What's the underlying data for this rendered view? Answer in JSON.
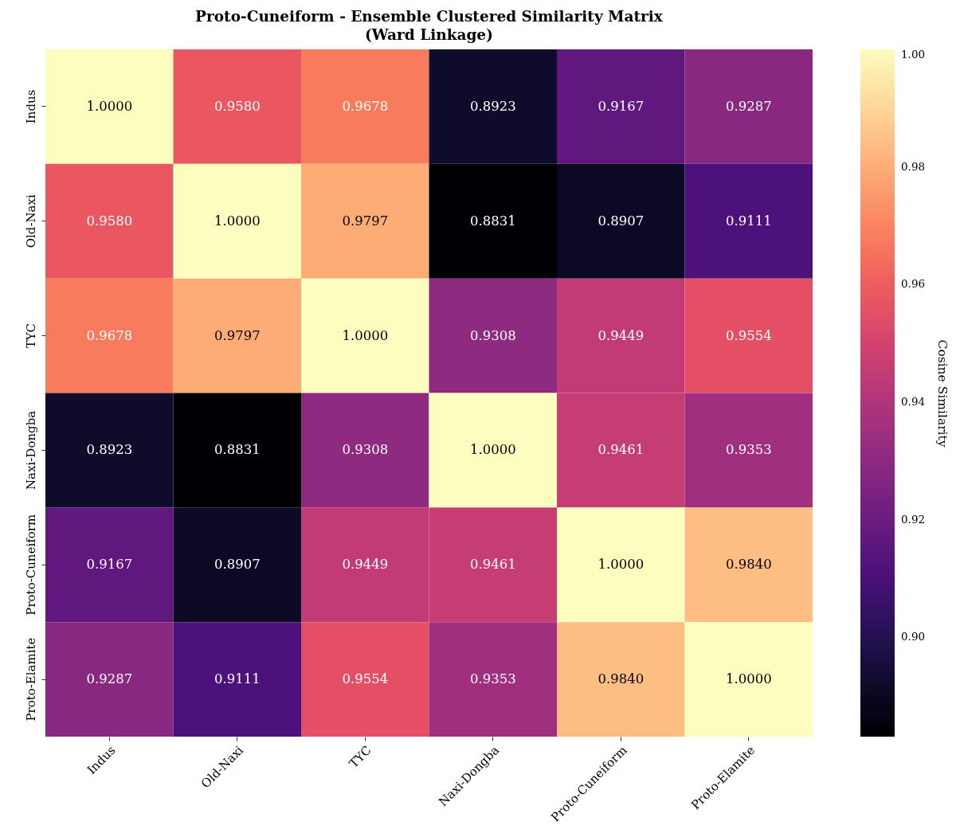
{
  "chart_data": {
    "type": "heatmap",
    "title": "Proto-Cuneiform - Ensemble Clustered Similarity Matrix\n(Ward Linkage)",
    "categories": [
      "Indus",
      "Old-Naxi",
      "TYC",
      "Naxi-Dongba",
      "Proto-Cuneiform",
      "Proto-Elamite"
    ],
    "y_categories": [
      "Indus",
      "Old-Naxi",
      "TYC",
      "Naxi-Dongba",
      "Proto-Cuneiform",
      "Proto-Elamite"
    ],
    "cells": [
      [
        1.0,
        0.958,
        0.9678,
        0.8923,
        0.9167,
        0.9287
      ],
      [
        0.958,
        1.0,
        0.9797,
        0.8831,
        0.8907,
        0.9111
      ],
      [
        0.9678,
        0.9797,
        1.0,
        0.9308,
        0.9449,
        0.9554
      ],
      [
        0.8923,
        0.8831,
        0.9308,
        1.0,
        0.9461,
        0.9353
      ],
      [
        0.9167,
        0.8907,
        0.9449,
        0.9461,
        1.0,
        0.984
      ],
      [
        0.9287,
        0.9111,
        0.9554,
        0.9353,
        0.984,
        1.0
      ]
    ],
    "cell_labels": [
      [
        "1.0000",
        "0.9580",
        "0.9678",
        "0.8923",
        "0.9167",
        "0.9287"
      ],
      [
        "0.9580",
        "1.0000",
        "0.9797",
        "0.8831",
        "0.8907",
        "0.9111"
      ],
      [
        "0.9678",
        "0.9797",
        "1.0000",
        "0.9308",
        "0.9449",
        "0.9554"
      ],
      [
        "0.8923",
        "0.8831",
        "0.9308",
        "1.0000",
        "0.9461",
        "0.9353"
      ],
      [
        "0.9167",
        "0.8907",
        "0.9449",
        "0.9461",
        "1.0000",
        "0.9840"
      ],
      [
        "0.9287",
        "0.9111",
        "0.9554",
        "0.9353",
        "0.9840",
        "1.0000"
      ]
    ],
    "clim": [
      0.8831,
      1.0
    ],
    "cticks": [
      {
        "value": 0.9,
        "label": "0.90"
      },
      {
        "value": 0.92,
        "label": "0.92"
      },
      {
        "value": 0.94,
        "label": "0.94"
      },
      {
        "value": 0.96,
        "label": "0.96"
      },
      {
        "value": 0.98,
        "label": "0.98"
      },
      {
        "value": 1.0,
        "label": "1.00"
      }
    ],
    "clabel": "Cosine Similarity"
  }
}
